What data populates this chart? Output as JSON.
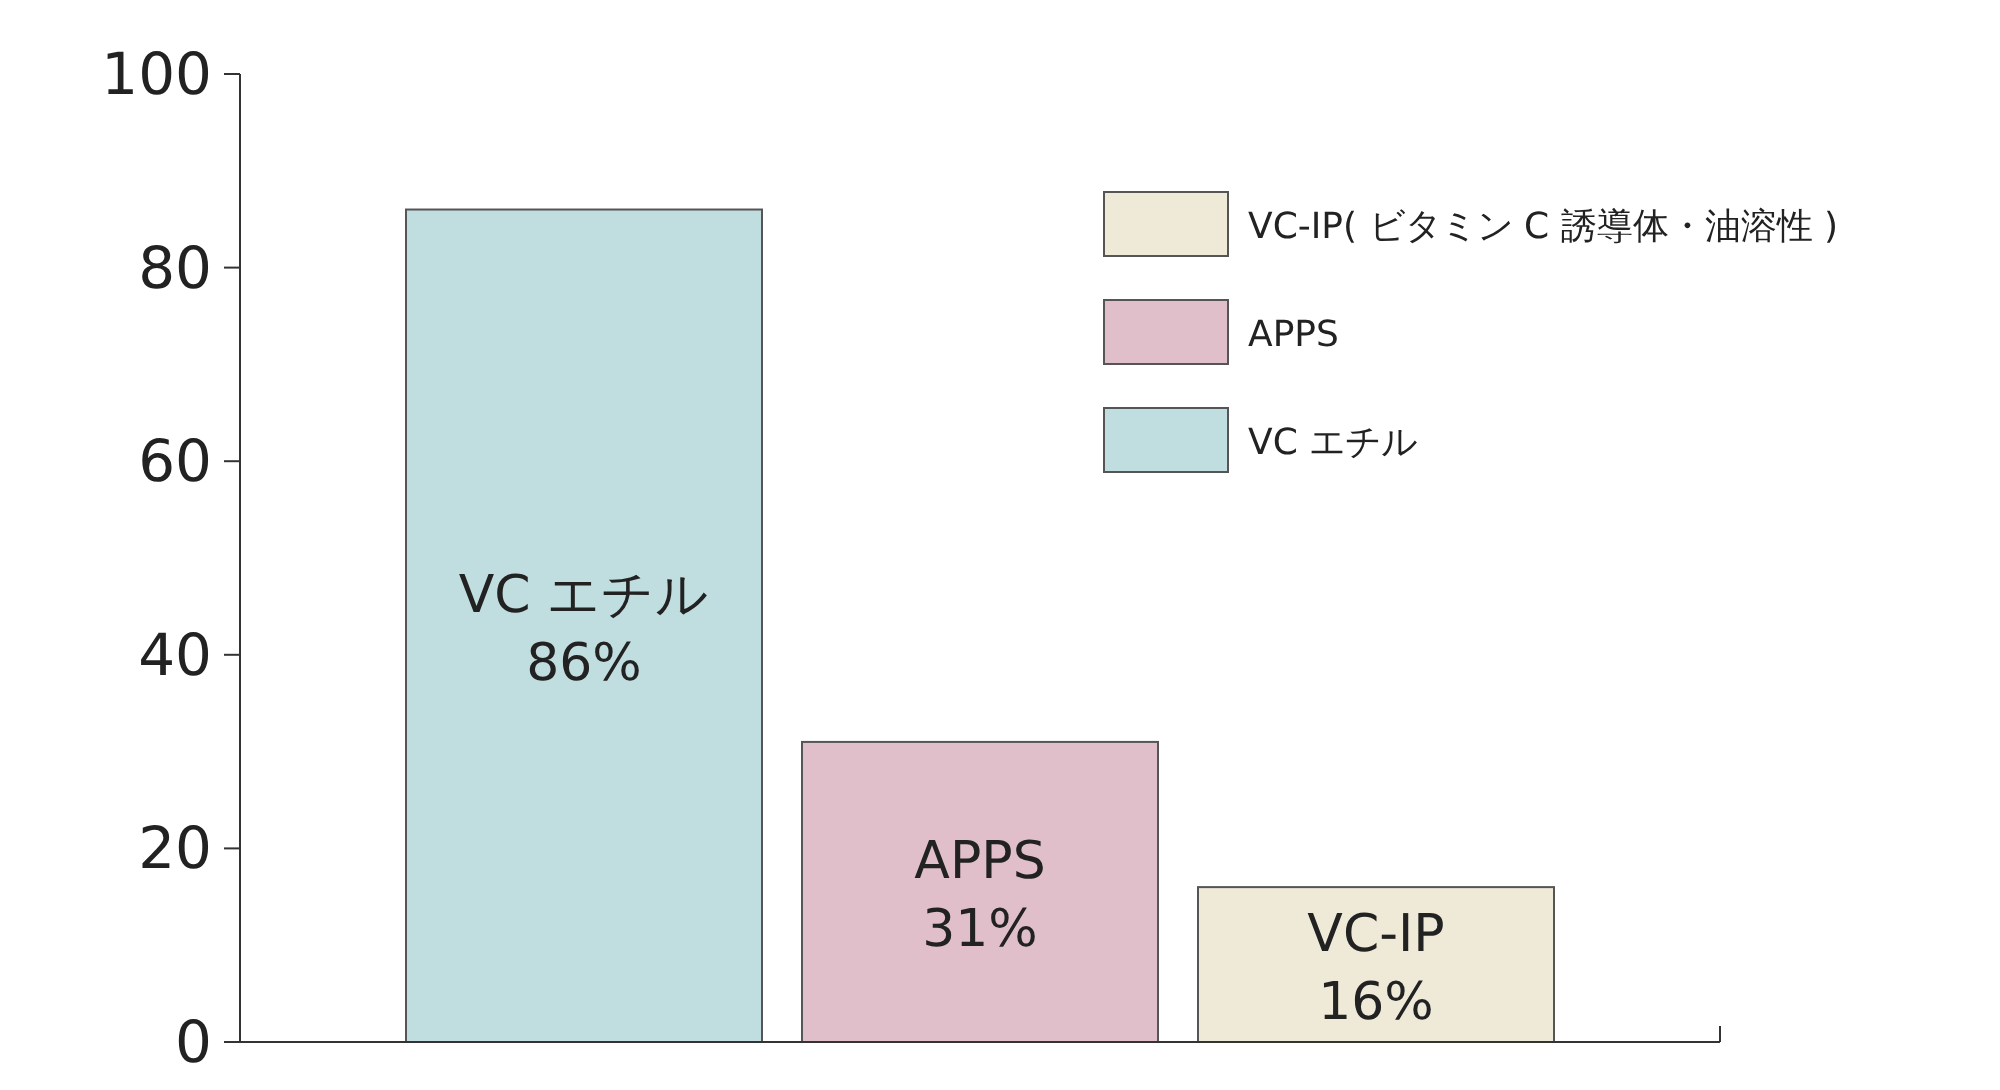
{
  "chart_data": {
    "type": "bar",
    "categories": [
      null,
      null,
      null
    ],
    "series": [
      {
        "name": "VC エチル",
        "color": "#c0dde0",
        "values": [
          86,
          null,
          null
        ],
        "value_labels": [
          "VC エチル\n86%",
          null,
          null
        ]
      },
      {
        "name": "APPS",
        "color": "#e0bfcb",
        "values": [
          null,
          31,
          null
        ],
        "value_labels": [
          null,
          "APPS\n31%",
          null
        ]
      },
      {
        "name": "VC-IP( ビタミン C 誘導体・油溶性 )",
        "color": "#efe9d8",
        "values": [
          null,
          null,
          16
        ],
        "value_labels": [
          null,
          null,
          "VC-IP\n16%"
        ]
      }
    ],
    "ylim": [
      0,
      100
    ],
    "yticks": [
      0,
      20,
      40,
      60,
      80,
      100
    ],
    "grid": false,
    "legend": "top right"
  }
}
